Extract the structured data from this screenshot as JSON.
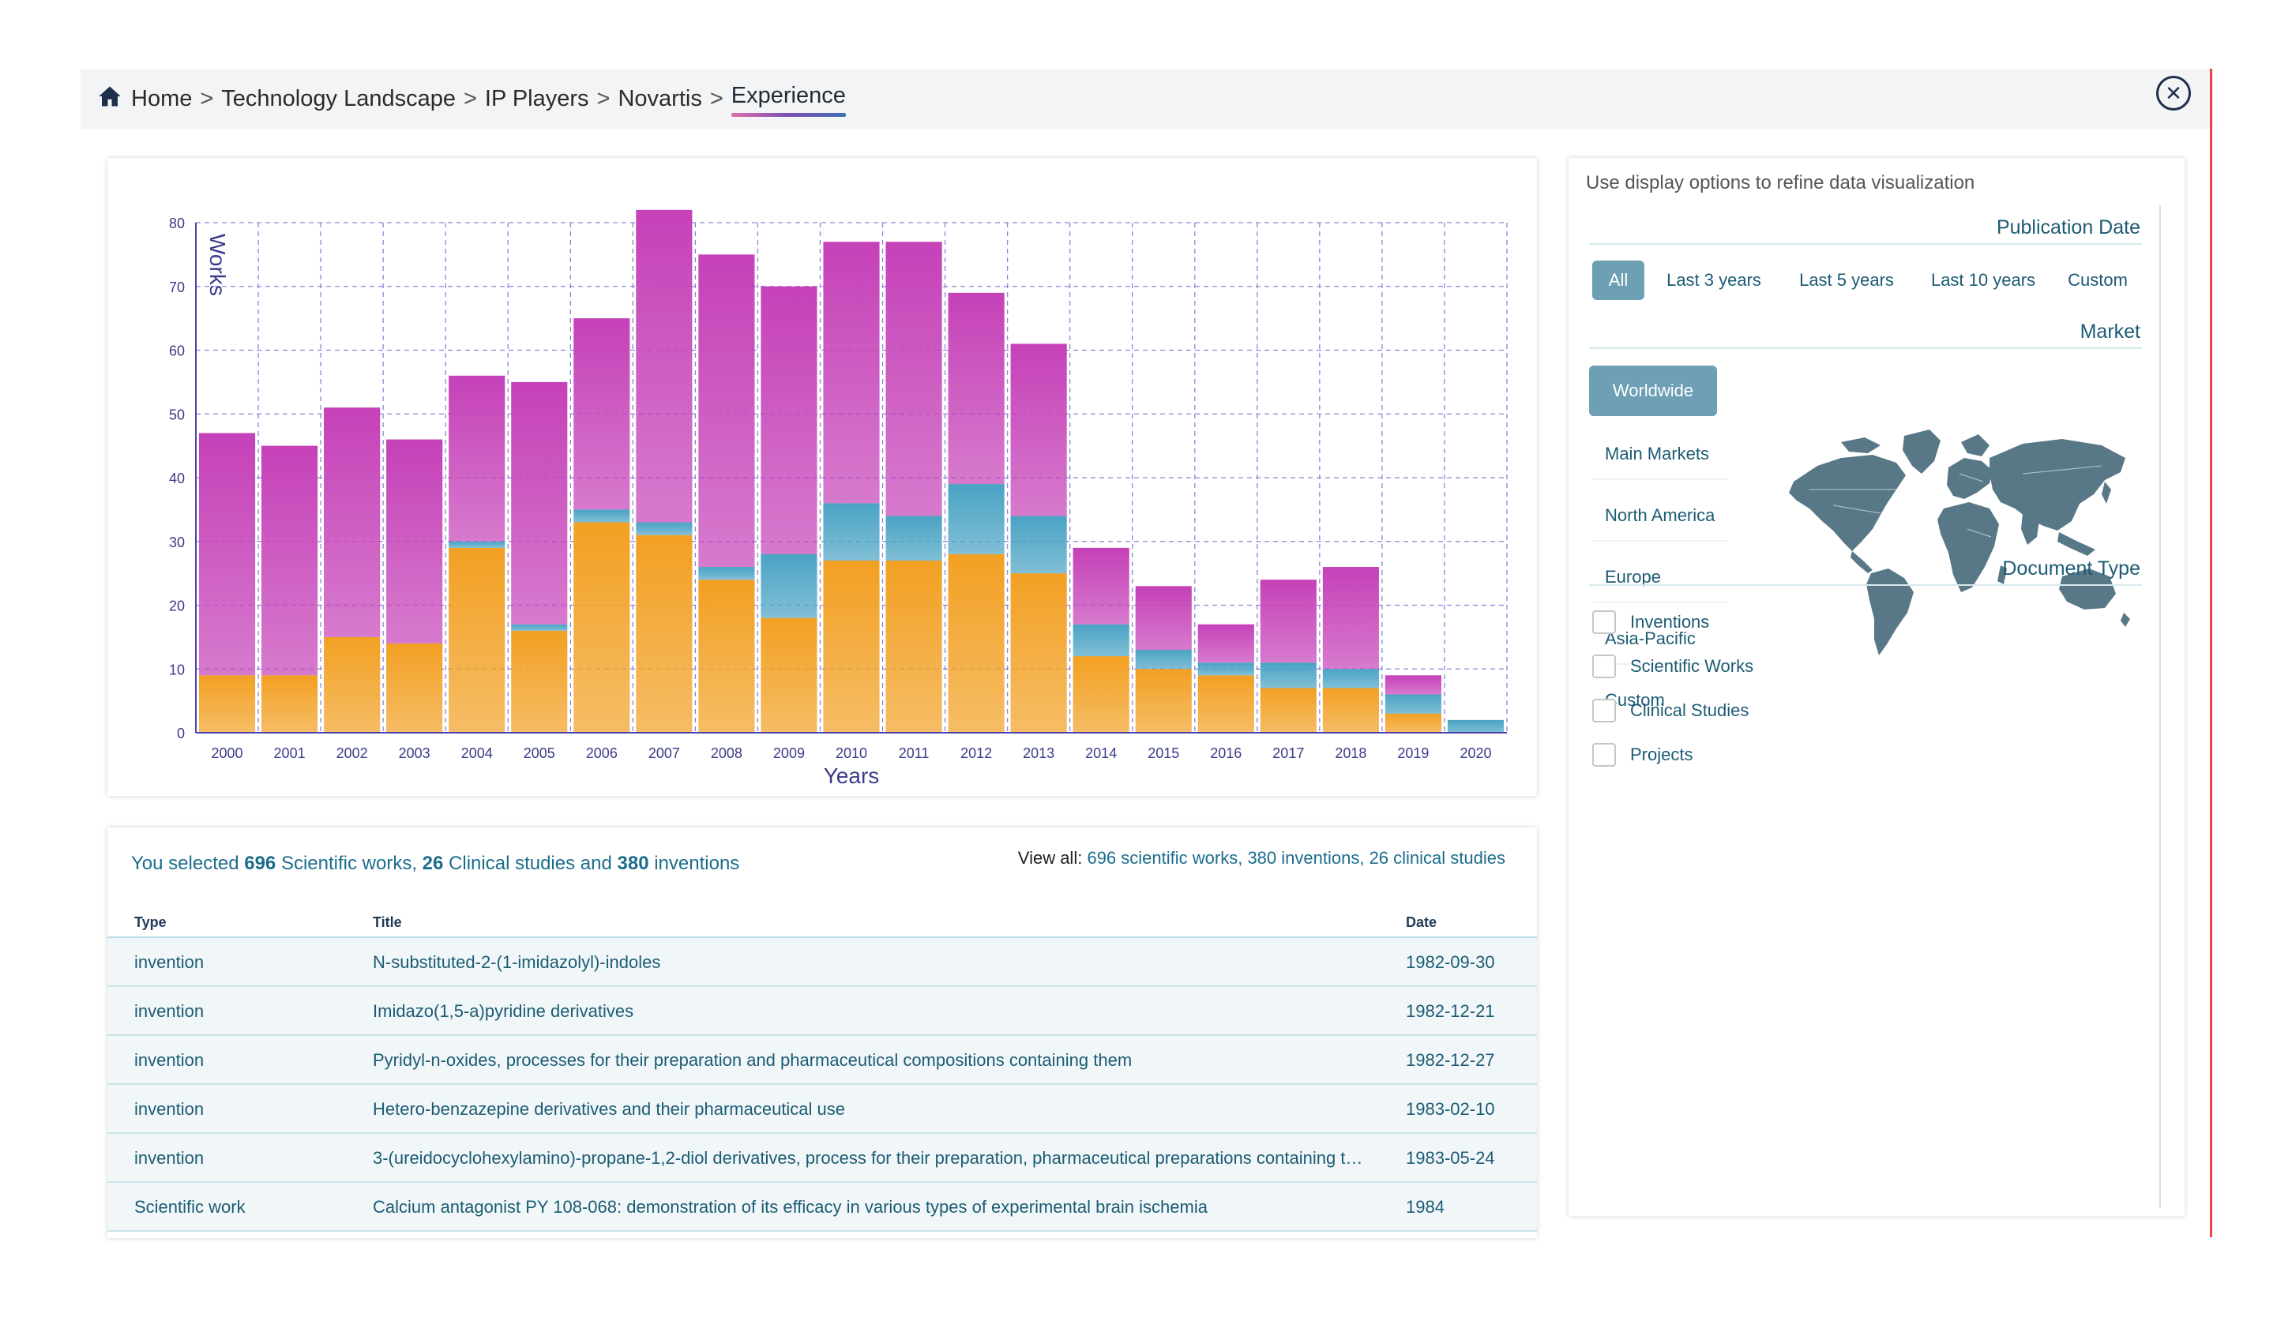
{
  "breadcrumb": {
    "items": [
      {
        "label": "Home"
      },
      {
        "label": "Technology Landscape"
      },
      {
        "label": "IP Players"
      },
      {
        "label": "Novartis"
      },
      {
        "label": "Experience"
      }
    ],
    "separator": ">"
  },
  "close_icon": "close-icon",
  "chart_data": {
    "type": "bar",
    "stacked": true,
    "xlabel": "Years",
    "ylabel": "Works",
    "ylim": [
      0,
      80
    ],
    "yticks": [
      0,
      10,
      20,
      30,
      40,
      50,
      60,
      70,
      80
    ],
    "grid": true,
    "categories": [
      "2000",
      "2001",
      "2002",
      "2003",
      "2004",
      "2005",
      "2006",
      "2007",
      "2008",
      "2009",
      "2010",
      "2011",
      "2012",
      "2013",
      "2014",
      "2015",
      "2016",
      "2017",
      "2018",
      "2019",
      "2020"
    ],
    "series": [
      {
        "color": "#f2a023",
        "values": [
          9,
          9,
          15,
          14,
          29,
          16,
          33,
          31,
          24,
          18,
          27,
          27,
          28,
          25,
          12,
          10,
          9,
          7,
          7,
          3,
          0
        ]
      },
      {
        "color": "#4aa3c4",
        "values": [
          0,
          0,
          0,
          0,
          1,
          1,
          2,
          2,
          2,
          10,
          9,
          7,
          11,
          9,
          5,
          3,
          2,
          4,
          3,
          3,
          2
        ]
      },
      {
        "color": "#c541b8",
        "values": [
          38,
          36,
          36,
          32,
          26,
          38,
          30,
          49,
          49,
          42,
          41,
          43,
          30,
          27,
          12,
          10,
          6,
          13,
          16,
          3,
          0
        ]
      }
    ]
  },
  "selection": {
    "prefix": "You selected",
    "scientific_count": "696",
    "scientific_text": "Scientific works,",
    "clinical_count": "26",
    "clinical_text": "Clinical studies and",
    "inventions_count": "380",
    "inventions_text": "inventions"
  },
  "view_all": {
    "label": "View all:",
    "scientific": "696 scientific works,",
    "inventions": "380 inventions,",
    "clinical": "26 clinical studies"
  },
  "table": {
    "columns": [
      "Type",
      "Title",
      "Date"
    ],
    "rows": [
      {
        "type": "invention",
        "title": "N-substituted-2-(1-imidazolyl)-indoles",
        "date": "1982-09-30"
      },
      {
        "type": "invention",
        "title": "Imidazo(1,5-a)pyridine derivatives",
        "date": "1982-12-21"
      },
      {
        "type": "invention",
        "title": "Pyridyl-n-oxides, processes for their preparation and pharmaceutical compositions containing them",
        "date": "1982-12-27"
      },
      {
        "type": "invention",
        "title": "Hetero-benzazepine derivatives and their pharmaceutical use",
        "date": "1983-02-10"
      },
      {
        "type": "invention",
        "title": "3-(ureidocyclohexylamino)-propane-1,2-diol derivatives, process for their preparation, pharmaceutical preparations containing t…",
        "date": "1983-05-24"
      },
      {
        "type": "Scientific work",
        "title": "Calcium antagonist PY 108-068: demonstration of its efficacy in various types of experimental brain ischemia",
        "date": "1984"
      }
    ]
  },
  "options": {
    "hint": "Use display options to refine data visualization",
    "publication_date": {
      "title": "Publication Date",
      "buttons": [
        "All",
        "Last 3 years",
        "Last 5 years",
        "Last 10 years",
        "Custom"
      ],
      "selected": "All"
    },
    "market": {
      "title": "Market",
      "items": [
        "Worldwide",
        "Main Markets",
        "North America",
        "Europe",
        "Asia-Pacific",
        "Custom"
      ],
      "selected": "Worldwide"
    },
    "document_type": {
      "title": "Document Type",
      "items": [
        "Inventions",
        "Scientific Works",
        "Clinical Studies",
        "Projects"
      ]
    }
  },
  "colors": {
    "accent": "#1c6d8c",
    "active_button": "#6d9fb5",
    "map": "#587887"
  }
}
